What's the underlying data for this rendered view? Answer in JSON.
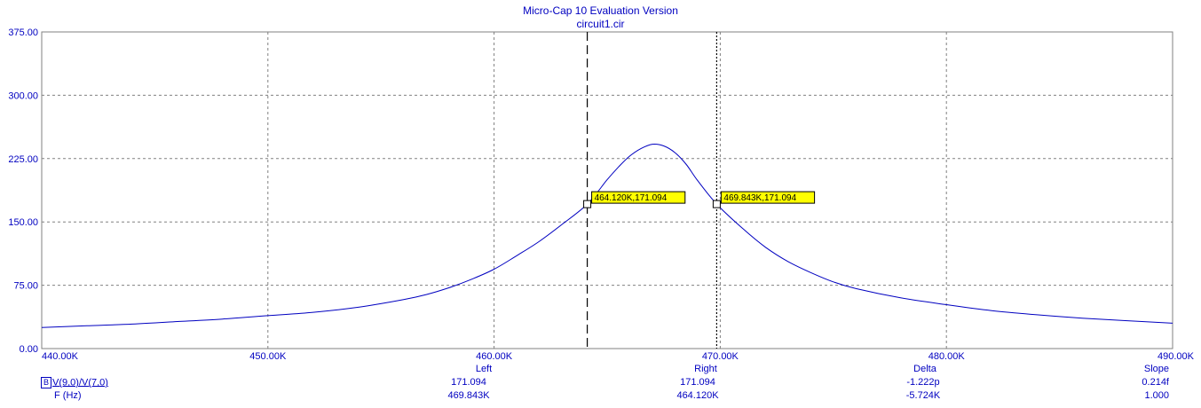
{
  "header": {
    "title": "Micro-Cap 10 Evaluation Version",
    "subtitle": "circuit1.cir"
  },
  "colors": {
    "trace": "#0000c0",
    "axis_text": "#0000c0",
    "grid": "#808080",
    "label_bg": "#ffff00"
  },
  "chart_data": {
    "type": "line",
    "xlim": [
      440000,
      490000
    ],
    "ylim": [
      0,
      375
    ],
    "x_ticks": [
      440000,
      450000,
      460000,
      470000,
      480000,
      490000
    ],
    "x_tick_labels": [
      "440.00K",
      "450.00K",
      "460.00K",
      "470.00K",
      "480.00K",
      "490.00K"
    ],
    "y_ticks": [
      0,
      75,
      150,
      225,
      300,
      375
    ],
    "y_tick_labels": [
      "0.00",
      "75.00",
      "150.00",
      "225.00",
      "300.00",
      "375.00"
    ],
    "grid": true,
    "series": [
      {
        "name": "V(9,0)/V(7,0)",
        "color": "#0000c0",
        "x": [
          440000,
          442000,
          444000,
          446000,
          448000,
          450000,
          452000,
          454000,
          456000,
          457000,
          458000,
          459000,
          460000,
          461000,
          462000,
          463000,
          464120,
          465000,
          465500,
          466000,
          466500,
          467000,
          467500,
          468000,
          468500,
          469000,
          469843,
          471000,
          472000,
          473000,
          474000,
          475000,
          476000,
          478000,
          480000,
          482000,
          484000,
          486000,
          488000,
          490000
        ],
        "y": [
          25,
          27,
          29,
          32,
          35,
          39,
          43,
          49,
          58,
          64,
          72,
          82,
          94,
          110,
          127,
          147,
          171.094,
          200,
          215,
          228,
          237,
          242,
          240,
          232,
          218,
          199,
          171.094,
          142,
          120,
          103,
          90,
          79,
          71,
          60,
          52,
          45,
          40,
          36,
          33,
          30
        ]
      }
    ],
    "cursors": [
      {
        "name": "Right",
        "x": 464120,
        "y": 171.094,
        "label": "464.120K,171.094",
        "style": "dashed"
      },
      {
        "name": "Left",
        "x": 469843,
        "y": 171.094,
        "label": "469.843K,171.094",
        "style": "dotted"
      }
    ]
  },
  "cursor_table": {
    "headers": [
      "Left",
      "Right",
      "Delta",
      "Slope"
    ],
    "rows": [
      {
        "badge": "B",
        "label": "V(9,0)/V(7,0)",
        "values": [
          "171.094",
          "171.094",
          "-1.222p",
          "0.214f"
        ]
      },
      {
        "badge": "",
        "label": "F (Hz)",
        "values": [
          "469.843K",
          "464.120K",
          "-5.724K",
          "1.000"
        ]
      }
    ]
  }
}
